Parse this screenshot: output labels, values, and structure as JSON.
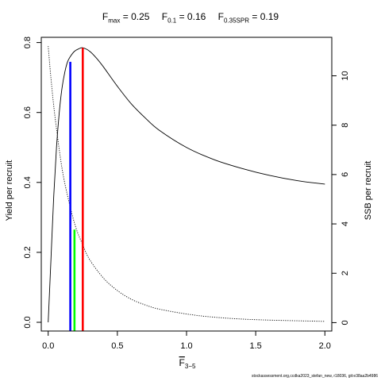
{
  "title": {
    "fmax": {
      "sym": "F",
      "sub": "max",
      "value": "= 0.25"
    },
    "f01": {
      "sym": "F",
      "sub": "0.1",
      "value": "= 0.16"
    },
    "fspr": {
      "sym": "F",
      "sub": "0.35SPR",
      "value": "= 0.19"
    }
  },
  "footer": "stockassessment.org,ccdka2023_stefan_new, r18036, git:e38aa2b4986",
  "chart_data": {
    "type": "line",
    "xlabel": {
      "sym": "F",
      "sub": "3−5"
    },
    "ylabel": "Yield per recruit",
    "y2label": "SSB per recruit",
    "xlim": [
      -0.05,
      2.05
    ],
    "ylim": [
      -0.025,
      0.815
    ],
    "y2lim": [
      -0.34,
      11.56
    ],
    "xticks": [
      0.0,
      0.5,
      1.0,
      1.5,
      2.0
    ],
    "xtick_labels": [
      "0.0",
      "0.5",
      "1.0",
      "1.5",
      "2.0"
    ],
    "yticks": [
      0.0,
      0.2,
      0.4,
      0.6,
      0.8
    ],
    "ytick_labels": [
      "0.0",
      "0.2",
      "0.4",
      "0.6",
      "0.8"
    ],
    "y2ticks": [
      0,
      2,
      4,
      6,
      8,
      10
    ],
    "y2tick_labels": [
      "0",
      "2",
      "4",
      "6",
      "8",
      "10"
    ],
    "grid": false,
    "series": [
      {
        "style": "solid",
        "color": "#000000",
        "axis": "left",
        "x": [
          0,
          0.02,
          0.04,
          0.06,
          0.08,
          0.1,
          0.12,
          0.14,
          0.16,
          0.19,
          0.22,
          0.25,
          0.3,
          0.35,
          0.4,
          0.5,
          0.6,
          0.7,
          0.8,
          1.0,
          1.2,
          1.4,
          1.6,
          1.8,
          2.0
        ],
        "y": [
          0.0,
          0.18,
          0.36,
          0.5,
          0.6,
          0.67,
          0.715,
          0.745,
          0.76,
          0.775,
          0.782,
          0.785,
          0.775,
          0.755,
          0.73,
          0.675,
          0.625,
          0.585,
          0.55,
          0.5,
          0.465,
          0.44,
          0.42,
          0.405,
          0.395
        ]
      },
      {
        "style": "dotted",
        "color": "#000000",
        "axis": "right",
        "x": [
          0,
          0.02,
          0.05,
          0.1,
          0.15,
          0.2,
          0.25,
          0.3,
          0.4,
          0.5,
          0.6,
          0.7,
          0.8,
          1.0,
          1.2,
          1.5,
          2.0
        ],
        "y": [
          11.2,
          9.9,
          8.3,
          6.25,
          4.9,
          3.85,
          3.15,
          2.55,
          1.8,
          1.3,
          0.95,
          0.72,
          0.55,
          0.35,
          0.22,
          0.12,
          0.05
        ]
      }
    ],
    "reference_lines": [
      {
        "x": 0.16,
        "to_y": 0.745,
        "color": "#0000ff"
      },
      {
        "x": 0.19,
        "to_y": 0.265,
        "color": "#00ff00"
      },
      {
        "x": 0.25,
        "to_y": 0.785,
        "color": "#ff0000"
      }
    ]
  }
}
